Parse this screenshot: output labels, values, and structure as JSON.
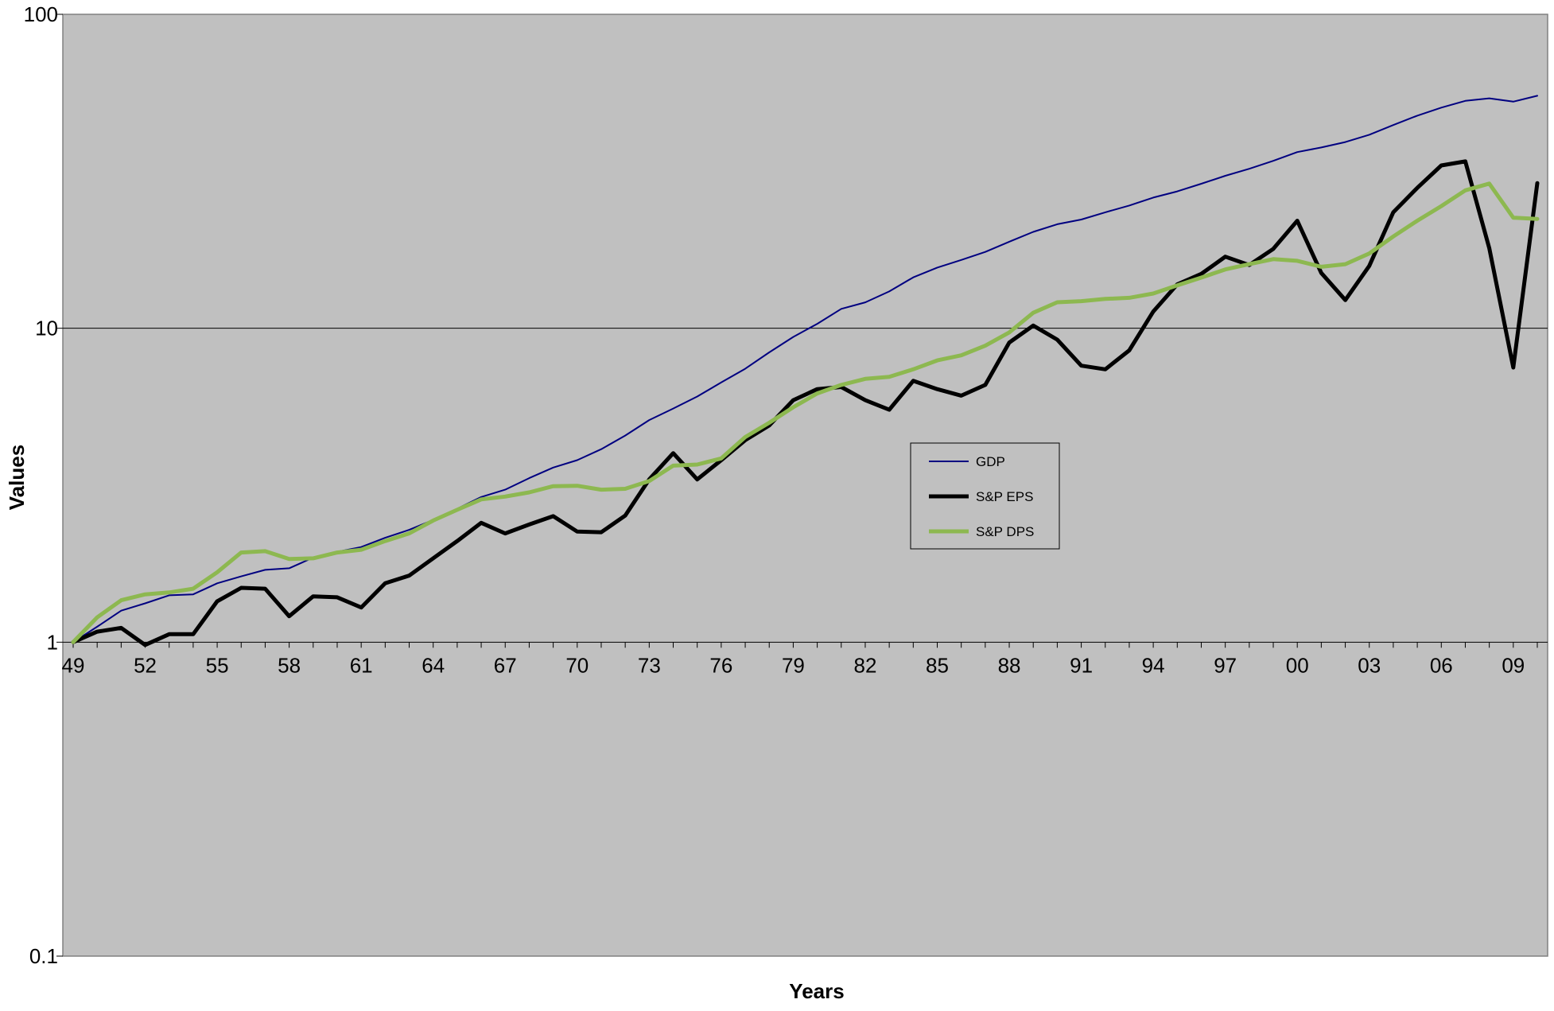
{
  "chart_data": {
    "type": "line",
    "title": "",
    "xlabel": "Years",
    "ylabel": "Values",
    "yscale": "log",
    "ylim": [
      0.1,
      100
    ],
    "y_ticks": [
      "100",
      "10",
      "1",
      "0.1"
    ],
    "y_tick_values": [
      100,
      10,
      1,
      0.1
    ],
    "x_tick_labels": [
      "49",
      "52",
      "55",
      "58",
      "61",
      "64",
      "67",
      "70",
      "73",
      "76",
      "79",
      "82",
      "85",
      "88",
      "91",
      "94",
      "97",
      "00",
      "03",
      "06",
      "09"
    ],
    "x_tick_years": [
      1949,
      1952,
      1955,
      1958,
      1961,
      1964,
      1967,
      1970,
      1973,
      1976,
      1979,
      1982,
      1985,
      1988,
      1991,
      1994,
      1997,
      2000,
      2003,
      2006,
      2009
    ],
    "grid": "horizontal major gridlines",
    "legend_position": "center",
    "background_color": "#c0c0c0",
    "x": [
      1949,
      1950,
      1951,
      1952,
      1953,
      1954,
      1955,
      1956,
      1957,
      1958,
      1959,
      1960,
      1961,
      1962,
      1963,
      1964,
      1965,
      1966,
      1967,
      1968,
      1969,
      1970,
      1971,
      1972,
      1973,
      1974,
      1975,
      1976,
      1977,
      1978,
      1979,
      1980,
      1981,
      1982,
      1983,
      1984,
      1985,
      1986,
      1987,
      1988,
      1989,
      1990,
      1991,
      1992,
      1993,
      1994,
      1995,
      1996,
      1997,
      1998,
      1999,
      2000,
      2001,
      2002,
      2003,
      2004,
      2005,
      2006,
      2007,
      2008,
      2009,
      2010
    ],
    "series": [
      {
        "name": "GDP",
        "color": "#000080",
        "width": 2,
        "values": [
          1.0,
          1.12,
          1.26,
          1.33,
          1.41,
          1.42,
          1.54,
          1.62,
          1.7,
          1.72,
          1.86,
          1.94,
          2.01,
          2.15,
          2.28,
          2.45,
          2.66,
          2.9,
          3.06,
          3.33,
          3.6,
          3.8,
          4.12,
          4.55,
          5.1,
          5.55,
          6.06,
          6.72,
          7.43,
          8.38,
          9.38,
          10.33,
          11.53,
          12.09,
          13.1,
          14.52,
          15.6,
          16.5,
          17.5,
          18.86,
          20.28,
          21.45,
          22.19,
          23.4,
          24.6,
          26.08,
          27.29,
          28.86,
          30.6,
          32.2,
          34.15,
          36.4,
          37.65,
          39.17,
          41.34,
          44.38,
          47.55,
          50.45,
          53.01,
          54.02,
          52.69,
          55.02
        ]
      },
      {
        "name": "S&P EPS",
        "color": "#000000",
        "width": 5,
        "values": [
          1.0,
          1.08,
          1.11,
          0.98,
          1.06,
          1.06,
          1.35,
          1.49,
          1.48,
          1.21,
          1.4,
          1.39,
          1.29,
          1.54,
          1.63,
          1.85,
          2.1,
          2.4,
          2.22,
          2.37,
          2.52,
          2.25,
          2.24,
          2.53,
          3.3,
          4.0,
          3.3,
          3.8,
          4.4,
          4.9,
          5.9,
          6.4,
          6.5,
          5.9,
          5.5,
          6.8,
          6.4,
          6.1,
          6.6,
          9.0,
          10.2,
          9.2,
          7.6,
          7.4,
          8.5,
          11.3,
          13.8,
          14.9,
          16.9,
          15.9,
          17.9,
          22.0,
          15.0,
          12.3,
          15.8,
          23.4,
          28.0,
          33.0,
          34.0,
          18.0,
          7.5,
          29.0
        ]
      },
      {
        "name": "S&P DPS",
        "color": "#8db850",
        "width": 5,
        "values": [
          1.0,
          1.2,
          1.36,
          1.42,
          1.44,
          1.48,
          1.67,
          1.93,
          1.95,
          1.84,
          1.85,
          1.93,
          1.97,
          2.1,
          2.22,
          2.44,
          2.64,
          2.85,
          2.91,
          3.0,
          3.14,
          3.15,
          3.06,
          3.08,
          3.26,
          3.65,
          3.68,
          3.85,
          4.5,
          5.0,
          5.6,
          6.2,
          6.6,
          6.9,
          7.0,
          7.4,
          7.9,
          8.2,
          8.8,
          9.7,
          11.2,
          12.1,
          12.2,
          12.4,
          12.5,
          12.9,
          13.7,
          14.5,
          15.4,
          16.0,
          16.6,
          16.4,
          15.7,
          16.0,
          17.3,
          19.6,
          22.0,
          24.5,
          27.5,
          28.9,
          22.5,
          22.3
        ]
      }
    ]
  }
}
